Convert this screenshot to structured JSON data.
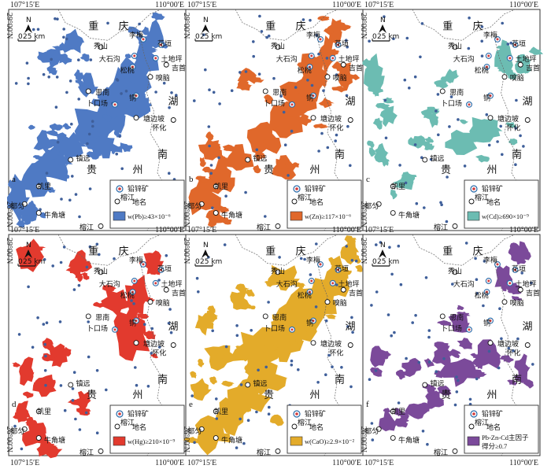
{
  "coords": {
    "top_left": "107°15′E",
    "top_right": "110°00′E",
    "bottom_left": "107°15′E",
    "bottom_right": "110°00′E",
    "lat_top": "29°00′N",
    "lat_bottom": "26°00′N"
  },
  "map_furniture": {
    "north": "N",
    "scale_zero": "0",
    "scale_label": "25 km"
  },
  "provinces": {
    "chongqing": [
      "重",
      "庆"
    ],
    "hunan": [
      "湖",
      "南"
    ],
    "guizhou": [
      "贵",
      "州"
    ]
  },
  "places": {
    "limei": "李梅",
    "huayuan": "花垣",
    "xiushan": "秀山",
    "dashigou": "大石沟",
    "tudiping": "土地坪",
    "songtao": "松桃",
    "jishou": "吉首",
    "xianao": "嗅脑",
    "sinan": "思南",
    "tong": "铜",
    "xiakouchang": "卜口场",
    "tangbianpo": "塘边坡",
    "huaihua": "怀化",
    "zhenyuan": "镇远",
    "kaili": "凯里",
    "duyun": "都匀",
    "niujiaotang": "牛角塘",
    "rongjiang": "榕江"
  },
  "legend_common": {
    "deposit": "铅锌矿",
    "placename": "地名",
    "sample_name": "榕江"
  },
  "panels": [
    {
      "letter": "a",
      "label": "w(Pb)≥43×10⁻⁶",
      "color": "#4f7ac4"
    },
    {
      "letter": "b",
      "label": "w(Zn)≥117×10⁻⁶",
      "color": "#e0682b"
    },
    {
      "letter": "c",
      "label": "w(Cd)≥690×10⁻⁹",
      "color": "#6cbcb2"
    },
    {
      "letter": "d",
      "label": "w(Hg)≥210×10⁻⁹",
      "color": "#e23a2e"
    },
    {
      "letter": "e",
      "label": "w(CaO)≥2.9×10⁻²",
      "color": "#e3ab2a"
    },
    {
      "letter": "f",
      "label": "Pb-Zn-Cd主因子得分≥0.7",
      "color": "#7b4a9a"
    }
  ],
  "colors": {
    "border": "#555555",
    "dot": "#3f5f9a",
    "deposit_ring": "#2a6aa8",
    "deposit_fill": "#d23b3b"
  }
}
